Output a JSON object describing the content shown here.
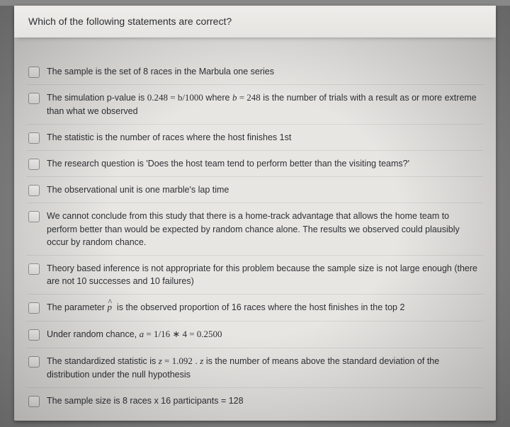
{
  "question": {
    "prompt": "Which of the following statements are correct?"
  },
  "options": [
    {
      "pre": "The sample is the set of 8 races in the Marbula one series"
    },
    {
      "pre": "The simulation p-value is ",
      "math1": "0.248 = b/1000",
      "mid": " where ",
      "math2": "b = 248",
      "post": " is the number of trials with a result as or more extreme than what we observed"
    },
    {
      "pre": "The statistic is the number of races where the host finishes 1st"
    },
    {
      "pre": "The research question is 'Does the host team tend to perform better than the visiting teams?'"
    },
    {
      "pre": "The observational unit is one marble's lap time"
    },
    {
      "pre": "We cannot conclude from this study that there is a home-track advantage that allows the home team to perform better than would be expected by random chance alone. The results we observed could plausibly occur by random chance."
    },
    {
      "pre": "Theory based inference is not appropriate for this problem because the sample size is not large enough (there are not 10 successes and 10 failures)"
    },
    {
      "pre": "The parameter ",
      "mathsym": "p̂",
      "post": " is the observed proportion of 16 races where the host finishes in the top 2"
    },
    {
      "pre": "Under random chance, ",
      "math1": "a = 1/16 ∗ 4 = 0.2500"
    },
    {
      "pre": "The standardized statistic is ",
      "math1": "z = 1.092",
      "mid": " . ",
      "math2": "z",
      "post": " is the number of means above the standard deviation of the distribution under the null hypothesis"
    },
    {
      "pre": "The sample size is 8 races x 16 participants = 128"
    }
  ],
  "style": {
    "page_bg": "#e8e6e3",
    "text_color": "#2d3035",
    "border_color": "#d6d4d1",
    "checkbox_border": "#9c9a97",
    "body_font_size": 12.5,
    "header_font_size": 14
  }
}
